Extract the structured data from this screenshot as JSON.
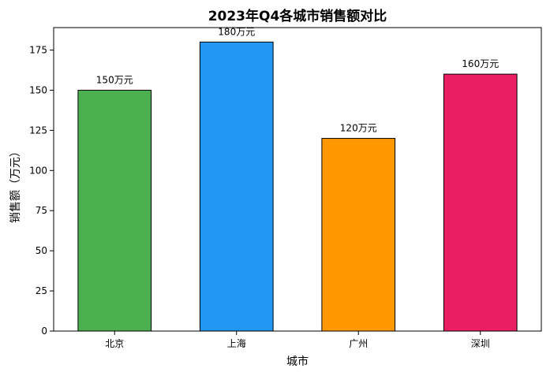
{
  "chart_data": {
    "type": "bar",
    "title": "2023年Q4各城市销售额对比",
    "xlabel": "城市",
    "ylabel": "销售额（万元）",
    "categories": [
      "北京",
      "上海",
      "广州",
      "深圳"
    ],
    "values": [
      150,
      180,
      120,
      160
    ],
    "data_labels": [
      "150万元",
      "180万元",
      "120万元",
      "160万元"
    ],
    "colors": [
      "#4caf50",
      "#2196f3",
      "#ff9800",
      "#e91e63"
    ],
    "edge_color": "#000000",
    "ylim": [
      0,
      189
    ],
    "yticks": [
      0,
      25,
      50,
      75,
      100,
      125,
      150,
      175
    ],
    "ytick_labels": [
      "0",
      "25",
      "50",
      "75",
      "100",
      "125",
      "150",
      "175"
    ],
    "grid": false,
    "legend": "none"
  }
}
